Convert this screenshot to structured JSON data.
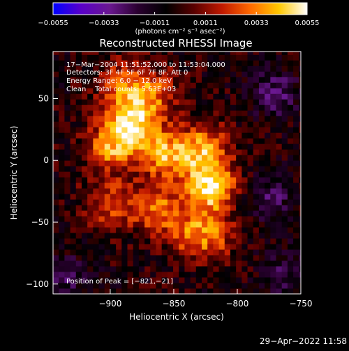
{
  "chart_data": {
    "type": "heatmap",
    "title": "Reconstructed RHESSI Image",
    "xlabel": "Heliocentric X (arcsec)",
    "ylabel": "Heliocentric Y (arcsec)",
    "xlim": [
      -945,
      -750
    ],
    "ylim": [
      -108,
      88
    ],
    "x_ticks": [
      -900,
      -850,
      -800,
      -750
    ],
    "x_tick_labels": [
      "−900",
      "−850",
      "−800",
      "−750"
    ],
    "y_ticks": [
      50,
      0,
      -50,
      -100
    ],
    "y_tick_labels": [
      "50",
      "0",
      "−50",
      "−100"
    ],
    "colorbar": {
      "range": [
        -0.0055,
        0.0055
      ],
      "ticks": [
        -0.0055,
        -0.0033,
        -0.0011,
        0.0011,
        0.0033,
        0.0055
      ],
      "tick_labels": [
        "−0.0055",
        "−0.0033",
        "−0.0011",
        "0.0011",
        "0.0033",
        "0.0055"
      ],
      "unit_label": "(photons cm⁻² s⁻¹ asec⁻²)"
    },
    "annotations": [
      "17−Mar−2004 11:51:52.000 to 11:53:04.000",
      "Detectors: 3F 4F 5F 6F 7F 8F, Att 0",
      "Energy Range: 6.0 − 12.0 keV",
      "Clean    Total counts: 5.63E+03"
    ],
    "peak_label": "Position of Peak = [−821,−21]",
    "peak": [
      -821,
      -21
    ],
    "sources": [
      {
        "x": -821,
        "y": -21,
        "value": 0.0055
      },
      {
        "x": -883,
        "y": 30,
        "value": 0.0047
      },
      {
        "x": -858,
        "y": 5,
        "value": 0.004
      },
      {
        "x": -827,
        "y": 10,
        "value": 0.0038
      },
      {
        "x": -900,
        "y": 10,
        "value": 0.0035
      },
      {
        "x": -862,
        "y": -40,
        "value": 0.0032
      },
      {
        "x": -900,
        "y": -35,
        "value": 0.0028
      },
      {
        "x": -835,
        "y": -60,
        "value": 0.0026
      },
      {
        "x": -890,
        "y": 60,
        "value": 0.003
      },
      {
        "x": -865,
        "y": 55,
        "value": 0.0026
      },
      {
        "x": -818,
        "y": -60,
        "value": 0.002
      }
    ],
    "negative_regions": [
      {
        "x": -770,
        "y": 55,
        "value": -0.002
      },
      {
        "x": -775,
        "y": -30,
        "value": -0.0018
      },
      {
        "x": -935,
        "y": -95,
        "value": -0.0016
      },
      {
        "x": -760,
        "y": -90,
        "value": -0.0015
      }
    ],
    "colormap": [
      "#0000ff",
      "#5a00c8",
      "#6a1890",
      "#2a0030",
      "#000000",
      "#5a0000",
      "#c21a00",
      "#ff6a00",
      "#ffc800",
      "#ffffff"
    ]
  },
  "footer": {
    "timestamp": "29−Apr−2022 11:58"
  }
}
